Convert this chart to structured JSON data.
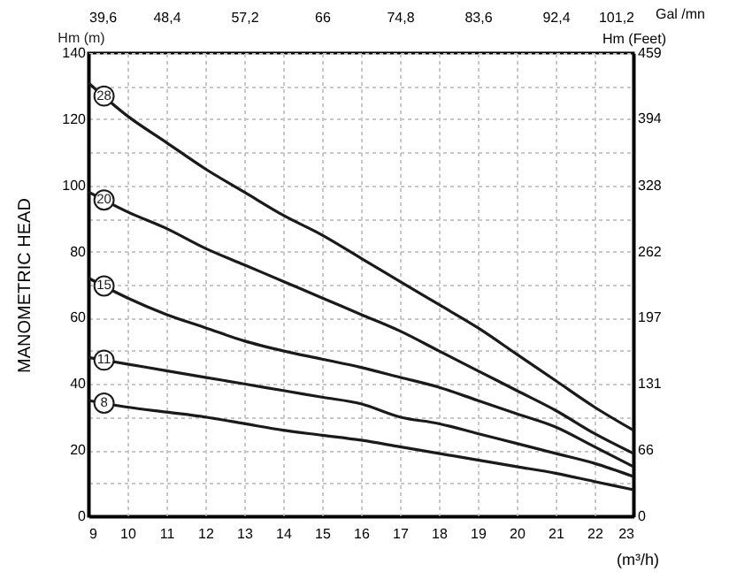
{
  "chart_data": {
    "type": "line",
    "xlabel": "(m³/h)",
    "ylabel": "MANOMETRIC HEAD",
    "y2label": "Hm (Feet)",
    "x2label": "Gal /mn",
    "annotations": [
      "Hm (m)"
    ],
    "xlim": [
      9,
      23
    ],
    "xticks": [
      9,
      10,
      11,
      12,
      13,
      14,
      15,
      16,
      17,
      18,
      19,
      20,
      21,
      22,
      23
    ],
    "ylim": [
      0,
      140
    ],
    "yticks": [
      0,
      {
        "value": 10,
        "label": null
      },
      20,
      {
        "value": 30,
        "label": null
      },
      40,
      {
        "value": 50,
        "label": null
      },
      60,
      {
        "value": 70,
        "label": null
      },
      80,
      {
        "value": 90,
        "label": null
      },
      100,
      {
        "value": 110,
        "label": null
      },
      120,
      {
        "value": 130,
        "label": null
      },
      140
    ],
    "x2lim": [
      39.6,
      101.2
    ],
    "x2ticks": [
      {
        "value": 39.6,
        "label": "39,6"
      },
      {
        "value": 48.4,
        "label": "48,4"
      },
      {
        "value": 57.2,
        "label": "57,2"
      },
      66,
      {
        "value": 74.8,
        "label": "74,8"
      },
      {
        "value": 83.6,
        "label": "83,6"
      },
      {
        "value": 92.4,
        "label": "92,4"
      },
      {
        "value": 101.2,
        "label": "101,2"
      }
    ],
    "y2lim": [
      0,
      459
    ],
    "y2ticks": [
      0,
      66,
      131,
      197,
      262,
      328,
      394,
      459
    ],
    "grid": true,
    "legend": false,
    "marker": "none",
    "line_style": "solid",
    "x": [
      9,
      10,
      11,
      12,
      13,
      14,
      15,
      16,
      17,
      18,
      19,
      20,
      21,
      22,
      23
    ],
    "series": [
      {
        "name": "28",
        "color": "#1a1a1a",
        "values": [
          131,
          121,
          113,
          105,
          98,
          91,
          85,
          78,
          71,
          64,
          57,
          49,
          41,
          33,
          26
        ]
      },
      {
        "name": "20",
        "color": "#1a1a1a",
        "values": [
          98,
          92,
          87,
          81,
          76,
          71,
          66,
          61,
          56,
          50,
          44,
          38,
          32,
          25,
          19
        ]
      },
      {
        "name": "15",
        "color": "#1a1a1a",
        "values": [
          72,
          66,
          61,
          57,
          53,
          50,
          47.5,
          45,
          42,
          39,
          35,
          31,
          27,
          21,
          15
        ]
      },
      {
        "name": "11",
        "color": "#1a1a1a",
        "values": [
          48,
          46,
          44,
          42,
          40,
          38,
          36,
          34,
          30,
          28,
          25,
          22,
          19,
          16,
          12
        ]
      },
      {
        "name": "8",
        "color": "#1a1a1a",
        "values": [
          35,
          33,
          31.5,
          30,
          28,
          26,
          24.5,
          23,
          21,
          19,
          17,
          15,
          13,
          10.5,
          8
        ]
      }
    ]
  }
}
